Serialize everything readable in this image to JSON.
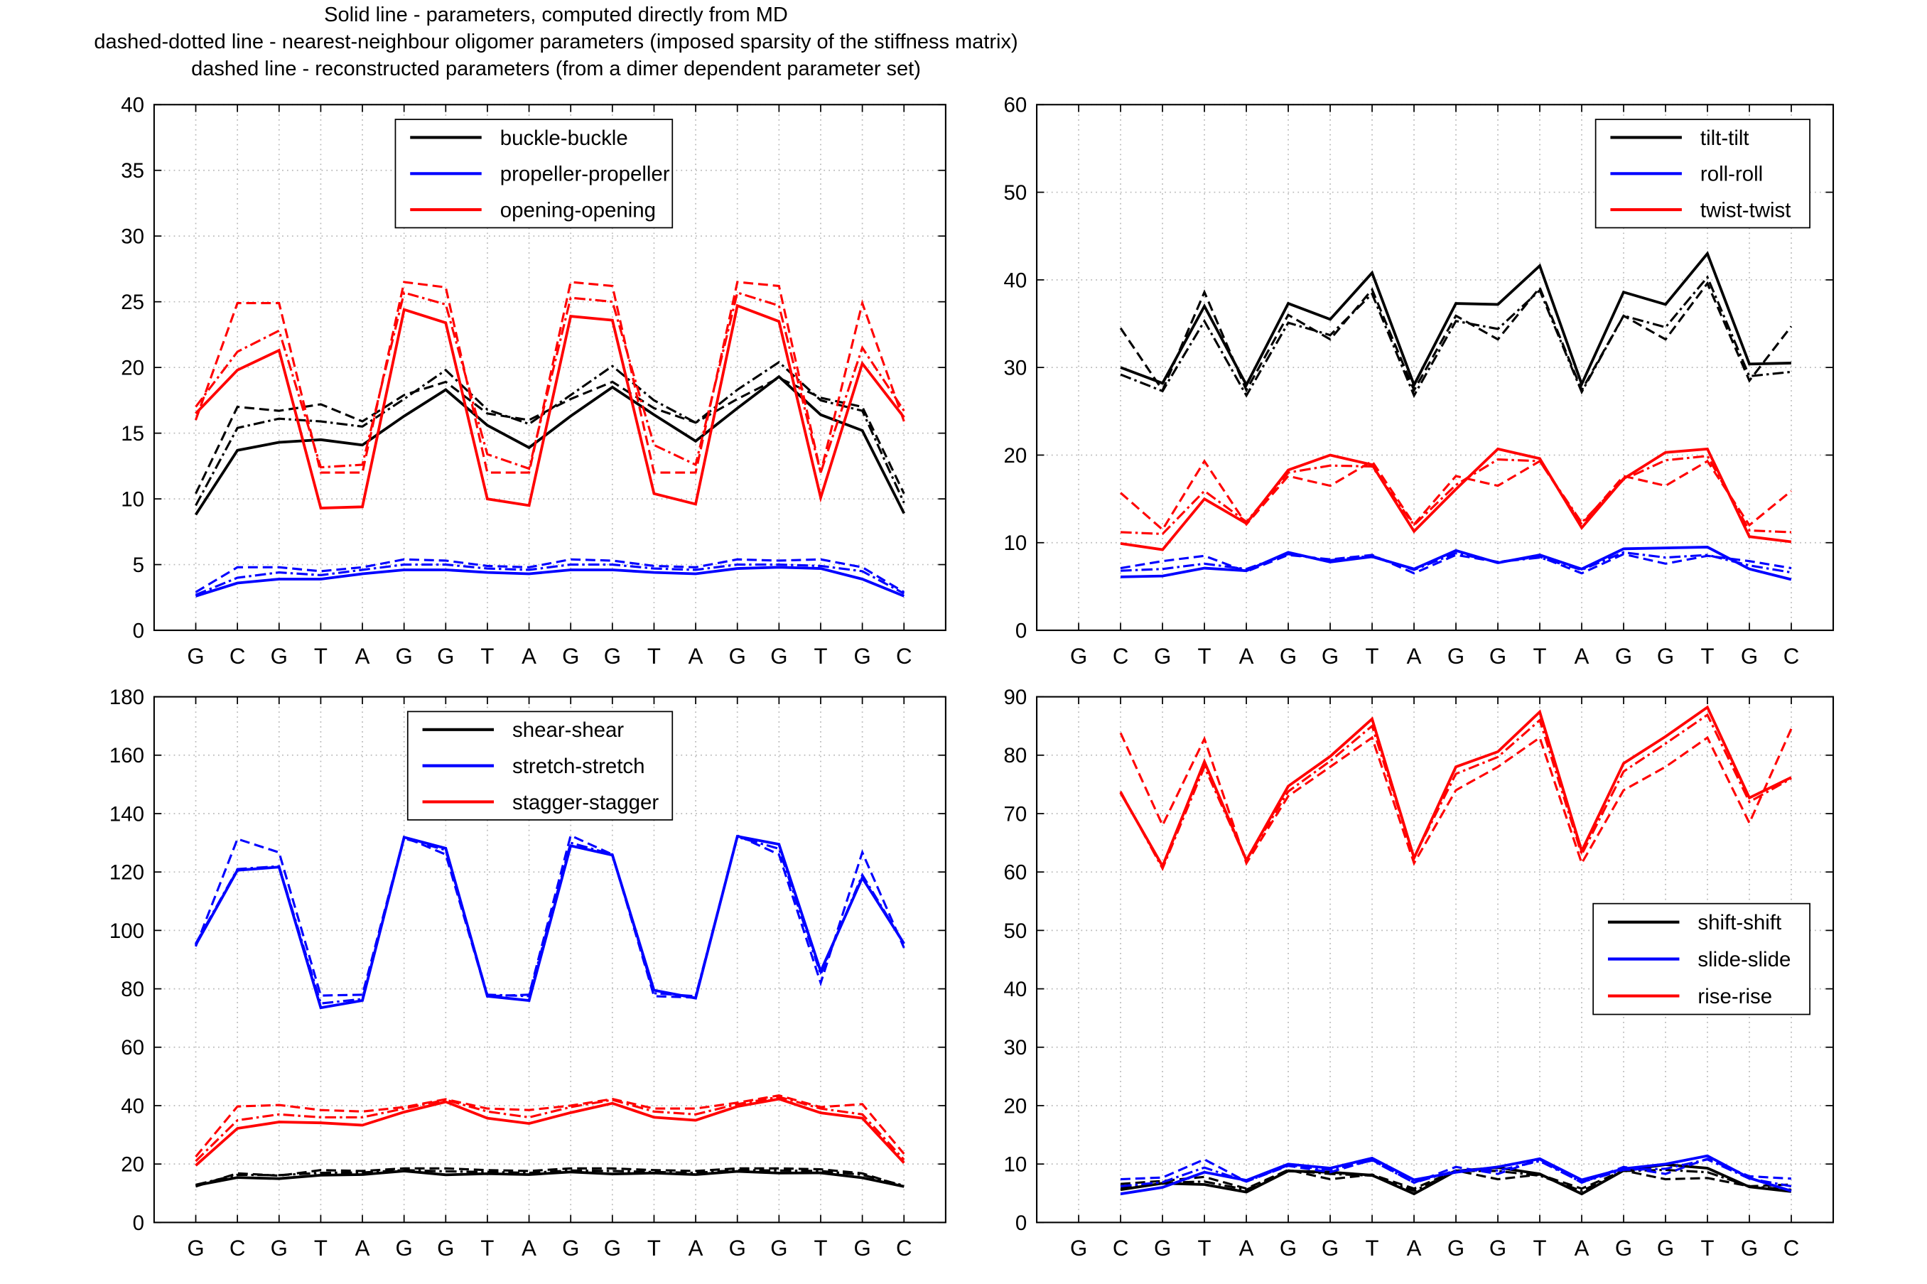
{
  "figure": {
    "title_lines": [
      "Solid line - parameters, computed directly from MD",
      "dashed-dotted line - nearest-neighbour oligomer parameters (imposed sparsity of the stiffness matrix)",
      "dashed line - reconstructed parameters (from a dimer dependent parameter set)"
    ]
  },
  "colors": {
    "black": "#000000",
    "blue": "#0000ff",
    "red": "#ff0000",
    "grid": "#b8b8b8"
  },
  "chart_data": [
    {
      "id": "panel-tl",
      "type": "line",
      "categories": [
        "G",
        "C",
        "G",
        "T",
        "A",
        "G",
        "G",
        "T",
        "A",
        "G",
        "G",
        "T",
        "A",
        "G",
        "G",
        "T",
        "G",
        "C"
      ],
      "ylim": [
        0,
        40
      ],
      "yticks": [
        0,
        5,
        10,
        15,
        20,
        25,
        30,
        35,
        40
      ],
      "legend_placement": "top-center",
      "legend": [
        "buckle-buckle",
        "propeller-propeller",
        "opening-opening"
      ],
      "series": [
        {
          "name": "buckle-buckle",
          "color": "#000000",
          "style": "solid",
          "values": [
            8.8,
            13.7,
            14.3,
            14.5,
            14.1,
            16.3,
            18.3,
            15.6,
            13.9,
            16.3,
            18.5,
            16.4,
            14.4,
            16.9,
            19.3,
            16.4,
            15.2,
            8.9
          ]
        },
        {
          "name": "buckle-buckle",
          "color": "#000000",
          "style": "dashdot",
          "values": [
            9.5,
            15.4,
            16.1,
            15.9,
            15.5,
            17.6,
            19.8,
            16.8,
            15.7,
            17.9,
            20.1,
            17.5,
            15.8,
            18.3,
            20.4,
            17.5,
            16.7,
            9.7
          ]
        },
        {
          "name": "buckle-buckle",
          "color": "#000000",
          "style": "dashed",
          "values": [
            10.4,
            17.0,
            16.7,
            17.2,
            15.9,
            17.9,
            18.9,
            16.5,
            16.0,
            17.6,
            18.9,
            16.9,
            15.8,
            17.6,
            19.2,
            17.7,
            17.0,
            10.4
          ]
        },
        {
          "name": "propeller-propeller",
          "color": "#0000ff",
          "style": "solid",
          "values": [
            2.6,
            3.6,
            3.9,
            3.9,
            4.3,
            4.6,
            4.6,
            4.4,
            4.3,
            4.6,
            4.6,
            4.4,
            4.3,
            4.7,
            4.8,
            4.7,
            3.9,
            2.6
          ]
        },
        {
          "name": "propeller-propeller",
          "color": "#0000ff",
          "style": "dashdot",
          "values": [
            2.7,
            4.0,
            4.4,
            4.2,
            4.6,
            5.0,
            5.0,
            4.7,
            4.6,
            5.0,
            5.0,
            4.7,
            4.6,
            5.0,
            5.0,
            4.9,
            4.5,
            2.8
          ]
        },
        {
          "name": "propeller-propeller",
          "color": "#0000ff",
          "style": "dashed",
          "values": [
            2.9,
            4.8,
            4.8,
            4.5,
            4.8,
            5.4,
            5.3,
            4.9,
            4.8,
            5.4,
            5.3,
            4.9,
            4.8,
            5.4,
            5.3,
            5.4,
            4.8,
            2.9
          ]
        },
        {
          "name": "opening-opening",
          "color": "#ff0000",
          "style": "solid",
          "values": [
            16.5,
            19.8,
            21.3,
            9.3,
            9.4,
            24.4,
            23.4,
            10.0,
            9.5,
            23.9,
            23.6,
            10.4,
            9.6,
            24.7,
            23.5,
            10.1,
            20.3,
            16.2
          ]
        },
        {
          "name": "opening-opening",
          "color": "#ff0000",
          "style": "dashdot",
          "values": [
            17.0,
            21.2,
            22.8,
            12.4,
            12.6,
            25.7,
            24.8,
            13.4,
            12.3,
            25.3,
            25.0,
            14.1,
            12.6,
            25.7,
            24.7,
            12.0,
            21.5,
            16.7
          ]
        },
        {
          "name": "opening-opening",
          "color": "#ff0000",
          "style": "dashed",
          "values": [
            16.0,
            24.9,
            24.9,
            12.0,
            12.0,
            26.5,
            26.1,
            12.0,
            12.0,
            26.5,
            26.2,
            12.0,
            12.0,
            26.5,
            26.2,
            12.0,
            24.9,
            15.9
          ]
        }
      ]
    },
    {
      "id": "panel-tr",
      "type": "line",
      "categories": [
        "G",
        "C",
        "G",
        "T",
        "A",
        "G",
        "G",
        "T",
        "A",
        "G",
        "G",
        "T",
        "A",
        "G",
        "G",
        "T",
        "G",
        "C"
      ],
      "ylim": [
        0,
        60
      ],
      "yticks": [
        0,
        10,
        20,
        30,
        40,
        50,
        60
      ],
      "legend_placement": "top-right",
      "legend": [
        "tilt-tilt",
        "roll-roll",
        "twist-twist"
      ],
      "series": [
        {
          "name": "tilt-tilt",
          "color": "#000000",
          "style": "solid",
          "values": [
            null,
            30.0,
            28.2,
            37.0,
            28.0,
            37.3,
            35.5,
            40.8,
            28.0,
            37.3,
            37.2,
            41.6,
            28.1,
            38.6,
            37.2,
            43.0,
            30.4,
            30.5
          ]
        },
        {
          "name": "tilt-tilt",
          "color": "#000000",
          "style": "dashdot",
          "values": [
            null,
            29.2,
            27.3,
            35.3,
            26.8,
            35.1,
            33.7,
            38.4,
            26.8,
            35.3,
            34.4,
            38.8,
            27.2,
            35.9,
            34.6,
            40.3,
            29.0,
            29.5
          ]
        },
        {
          "name": "tilt-tilt",
          "color": "#000000",
          "style": "dashed",
          "values": [
            null,
            34.5,
            27.4,
            38.6,
            27.4,
            36.0,
            33.2,
            38.9,
            27.4,
            35.9,
            33.2,
            39.1,
            27.4,
            35.9,
            33.2,
            39.6,
            28.5,
            34.7
          ]
        },
        {
          "name": "roll-roll",
          "color": "#0000ff",
          "style": "solid",
          "values": [
            null,
            6.1,
            6.2,
            7.1,
            6.8,
            8.9,
            7.8,
            8.4,
            7.0,
            9.1,
            7.7,
            8.6,
            7.0,
            9.3,
            9.4,
            9.5,
            7.0,
            5.8
          ]
        },
        {
          "name": "roll-roll",
          "color": "#0000ff",
          "style": "dashdot",
          "values": [
            null,
            6.8,
            7.0,
            7.6,
            7.0,
            8.7,
            8.0,
            8.5,
            6.9,
            8.8,
            7.8,
            8.3,
            6.9,
            8.9,
            8.3,
            8.6,
            7.4,
            6.6
          ]
        },
        {
          "name": "roll-roll",
          "color": "#0000ff",
          "style": "dashed",
          "values": [
            null,
            7.1,
            7.9,
            8.5,
            6.7,
            8.6,
            8.1,
            8.6,
            6.5,
            8.6,
            7.8,
            8.4,
            6.5,
            8.7,
            7.6,
            8.5,
            7.9,
            7.1
          ]
        },
        {
          "name": "twist-twist",
          "color": "#ff0000",
          "style": "solid",
          "values": [
            null,
            9.9,
            9.2,
            15.0,
            12.2,
            18.3,
            20.0,
            18.9,
            11.3,
            16.1,
            20.7,
            19.6,
            11.7,
            17.3,
            20.3,
            20.7,
            10.7,
            10.1
          ]
        },
        {
          "name": "twist-twist",
          "color": "#ff0000",
          "style": "dashdot",
          "values": [
            null,
            11.2,
            11.0,
            15.9,
            12.4,
            18.0,
            18.8,
            18.7,
            12.0,
            16.6,
            19.5,
            19.3,
            12.3,
            17.2,
            19.4,
            19.9,
            11.4,
            11.2
          ]
        },
        {
          "name": "twist-twist",
          "color": "#ff0000",
          "style": "dashed",
          "values": [
            null,
            15.7,
            11.5,
            19.3,
            12.1,
            17.6,
            16.5,
            19.3,
            12.1,
            17.6,
            16.5,
            19.3,
            12.1,
            17.6,
            16.5,
            19.3,
            12.0,
            15.9
          ]
        }
      ]
    },
    {
      "id": "panel-bl",
      "type": "line",
      "categories": [
        "G",
        "C",
        "G",
        "T",
        "A",
        "G",
        "G",
        "T",
        "A",
        "G",
        "G",
        "T",
        "A",
        "G",
        "G",
        "T",
        "G",
        "C"
      ],
      "ylim": [
        0,
        180
      ],
      "yticks": [
        0,
        20,
        40,
        60,
        80,
        100,
        120,
        140,
        160,
        180
      ],
      "legend_placement": "top-center",
      "legend": [
        "shear-shear",
        "stretch-stretch",
        "stagger-stagger"
      ],
      "series": [
        {
          "name": "shear-shear",
          "color": "#000000",
          "style": "solid",
          "values": [
            12.7,
            15.4,
            15.0,
            16.2,
            16.4,
            17.6,
            16.3,
            16.7,
            16.4,
            17.3,
            16.6,
            16.9,
            16.4,
            17.5,
            16.9,
            17.0,
            15.3,
            12.3
          ]
        },
        {
          "name": "shear-shear",
          "color": "#000000",
          "style": "dashdot",
          "values": [
            12.9,
            16.3,
            16.2,
            17.0,
            17.1,
            17.9,
            17.5,
            17.3,
            17.0,
            17.8,
            17.6,
            17.3,
            17.0,
            17.9,
            17.8,
            17.6,
            16.3,
            12.6
          ]
        },
        {
          "name": "shear-shear",
          "color": "#000000",
          "style": "dashed",
          "values": [
            12.3,
            16.8,
            16.0,
            17.9,
            17.6,
            18.5,
            18.5,
            17.9,
            17.6,
            18.5,
            18.5,
            17.9,
            17.6,
            18.5,
            18.5,
            18.2,
            16.8,
            12.3
          ]
        },
        {
          "name": "stretch-stretch",
          "color": "#0000ff",
          "style": "solid",
          "values": [
            95.0,
            120.6,
            121.7,
            73.5,
            76.0,
            131.9,
            128.1,
            77.5,
            76.0,
            129.0,
            125.8,
            79.5,
            76.8,
            132.2,
            129.5,
            86.0,
            118.0,
            95.5
          ]
        },
        {
          "name": "stretch-stretch",
          "color": "#0000ff",
          "style": "dashdot",
          "values": [
            95.5,
            121.0,
            122.0,
            75.0,
            76.5,
            131.5,
            127.5,
            78.0,
            77.5,
            130.0,
            126.0,
            78.5,
            77.5,
            132.0,
            128.0,
            85.0,
            119.0,
            95.5
          ]
        },
        {
          "name": "stretch-stretch",
          "color": "#0000ff",
          "style": "dashed",
          "values": [
            94.5,
            131.3,
            126.7,
            77.7,
            78.0,
            132.0,
            126.0,
            77.5,
            78.0,
            132.5,
            126.0,
            77.5,
            77.0,
            132.5,
            126.0,
            82.0,
            126.7,
            94.0
          ]
        },
        {
          "name": "stagger-stagger",
          "color": "#ff0000",
          "style": "solid",
          "values": [
            19.5,
            32.2,
            34.4,
            34.1,
            33.3,
            37.8,
            41.3,
            35.7,
            33.9,
            37.6,
            40.8,
            36.0,
            35.0,
            39.7,
            42.3,
            37.5,
            35.7,
            20.4
          ]
        },
        {
          "name": "stagger-stagger",
          "color": "#ff0000",
          "style": "dashdot",
          "values": [
            21.0,
            35.0,
            37.0,
            36.0,
            36.0,
            39.0,
            42.0,
            38.0,
            36.0,
            39.5,
            42.0,
            38.0,
            37.0,
            40.5,
            43.0,
            39.0,
            37.0,
            21.5
          ]
        },
        {
          "name": "stagger-stagger",
          "color": "#ff0000",
          "style": "dashed",
          "values": [
            22.5,
            39.7,
            40.2,
            38.5,
            38.0,
            39.5,
            42.2,
            39.0,
            38.5,
            40.0,
            42.3,
            39.0,
            39.0,
            41.0,
            43.5,
            39.5,
            40.5,
            23.5
          ]
        }
      ]
    },
    {
      "id": "panel-br",
      "type": "line",
      "categories": [
        "G",
        "C",
        "G",
        "T",
        "A",
        "G",
        "G",
        "T",
        "A",
        "G",
        "G",
        "T",
        "A",
        "G",
        "G",
        "T",
        "G",
        "C"
      ],
      "ylim": [
        0,
        90
      ],
      "yticks": [
        0,
        10,
        20,
        30,
        40,
        50,
        60,
        70,
        80,
        90
      ],
      "legend_placement": "middle-right",
      "legend": [
        "shift-shift",
        "slide-slide",
        "rise-rise"
      ],
      "series": [
        {
          "name": "shift-shift",
          "color": "#000000",
          "style": "solid",
          "values": [
            null,
            5.6,
            6.7,
            6.5,
            5.2,
            8.8,
            8.6,
            8.1,
            4.9,
            8.8,
            9.4,
            8.3,
            4.9,
            8.9,
            9.9,
            9.3,
            6.1,
            5.3
          ]
        },
        {
          "name": "shift-shift",
          "color": "#000000",
          "style": "dashdot",
          "values": [
            null,
            6.0,
            6.8,
            7.0,
            5.6,
            8.9,
            8.3,
            8.0,
            5.4,
            8.8,
            8.8,
            8.0,
            5.4,
            8.8,
            9.0,
            8.6,
            6.2,
            5.6
          ]
        },
        {
          "name": "shift-shift",
          "color": "#000000",
          "style": "dashed",
          "values": [
            null,
            6.6,
            7.1,
            7.8,
            5.8,
            9.0,
            7.4,
            8.2,
            5.8,
            8.9,
            7.4,
            8.2,
            5.8,
            8.9,
            7.4,
            7.6,
            6.2,
            6.5
          ]
        },
        {
          "name": "slide-slide",
          "color": "#0000ff",
          "style": "solid",
          "values": [
            null,
            4.9,
            6.0,
            8.6,
            7.2,
            10.0,
            9.3,
            11.0,
            7.3,
            8.6,
            9.5,
            10.9,
            7.3,
            9.2,
            10.0,
            11.4,
            7.6,
            5.4
          ]
        },
        {
          "name": "slide-slide",
          "color": "#0000ff",
          "style": "dashdot",
          "values": [
            null,
            6.2,
            6.9,
            9.4,
            7.0,
            9.8,
            9.0,
            10.6,
            6.8,
            8.9,
            8.9,
            10.5,
            6.9,
            9.0,
            9.2,
            10.8,
            7.5,
            6.2
          ]
        },
        {
          "name": "slide-slide",
          "color": "#0000ff",
          "style": "dashed",
          "values": [
            null,
            7.4,
            7.7,
            10.8,
            7.0,
            9.7,
            8.6,
            10.7,
            6.8,
            9.5,
            8.3,
            10.8,
            6.8,
            9.5,
            8.3,
            10.9,
            7.9,
            7.5
          ]
        },
        {
          "name": "rise-rise",
          "color": "#ff0000",
          "style": "solid",
          "values": [
            null,
            73.6,
            61.0,
            78.9,
            62.0,
            74.7,
            79.8,
            86.2,
            62.4,
            78.0,
            80.6,
            87.4,
            63.6,
            78.6,
            83.2,
            88.2,
            72.7,
            76.2
          ]
        },
        {
          "name": "rise-rise",
          "color": "#ff0000",
          "style": "dashdot",
          "values": [
            null,
            73.8,
            60.6,
            78.0,
            62.0,
            73.8,
            79.0,
            85.0,
            62.5,
            76.8,
            79.7,
            86.0,
            63.0,
            77.2,
            82.0,
            86.9,
            72.0,
            76.0
          ]
        },
        {
          "name": "rise-rise",
          "color": "#ff0000",
          "style": "dashed",
          "values": [
            null,
            83.8,
            68.0,
            82.8,
            61.5,
            73.0,
            78.0,
            83.0,
            61.5,
            74.0,
            78.0,
            83.0,
            61.5,
            74.0,
            78.0,
            83.0,
            68.4,
            84.5
          ]
        }
      ]
    }
  ]
}
